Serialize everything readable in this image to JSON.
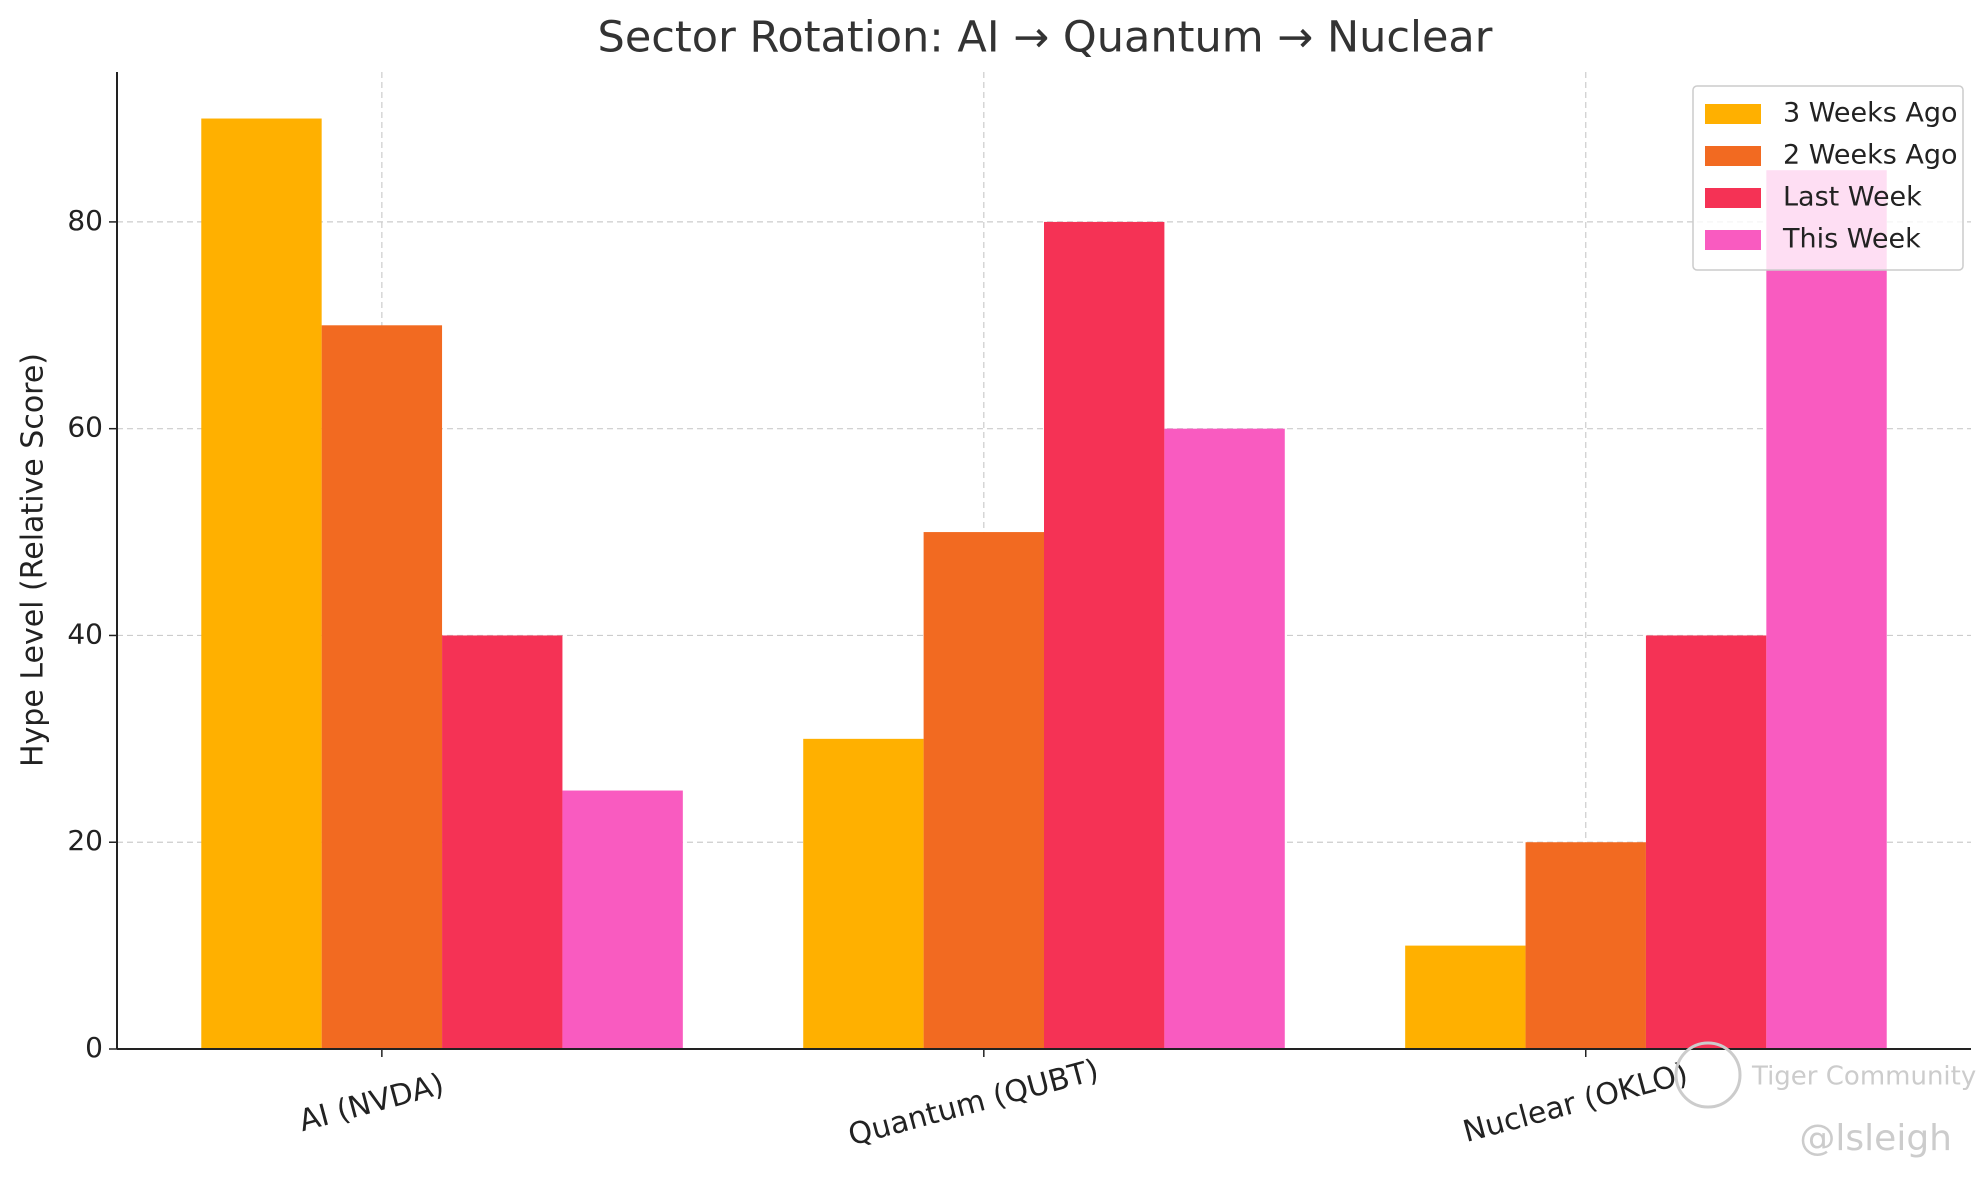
{
  "chart_data": {
    "type": "bar",
    "title": "Sector Rotation: AI → Quantum → Nuclear",
    "y_label": "Hype Level (Relative Score)",
    "categories": [
      "AI (NVDA)",
      "Quantum (QUBT)",
      "Nuclear (OKLO)"
    ],
    "series": [
      {
        "name": "3 Weeks Ago",
        "color": "#ffb000",
        "values": [
          90,
          30,
          10
        ]
      },
      {
        "name": "2 Weeks Ago",
        "color": "#f26a21",
        "values": [
          70,
          50,
          20
        ]
      },
      {
        "name": "Last Week",
        "color": "#f53255",
        "values": [
          40,
          80,
          40
        ]
      },
      {
        "name": "This Week",
        "color": "#f95bc0",
        "values": [
          25,
          60,
          85
        ]
      }
    ],
    "ylim": [
      0,
      94.5
    ],
    "yticks": [
      0,
      20,
      40,
      60,
      80
    ],
    "grid": true,
    "legend": "upper right",
    "watermarks": [
      "Tiger Community",
      "@lsleigh"
    ]
  }
}
